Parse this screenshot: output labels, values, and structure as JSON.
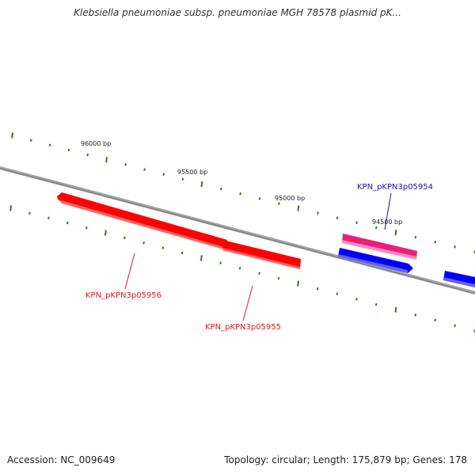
{
  "title": "Klebsiella pneumoniae subsp. pneumoniae MGH 78578 plasmid pK...",
  "accession": "Accession: NC_009649",
  "summary": "Topology: circular; Length: 175,879 bp; Genes: 178",
  "ruler": {
    "labels": [
      "96000 bp",
      "95500 bp",
      "95000 bp",
      "94500 bp"
    ],
    "positions_bp": [
      96000,
      95500,
      95000,
      94500
    ],
    "tick_color": "#2e7d1a"
  },
  "genes": [
    {
      "name": "KPN_pKPN3p05956",
      "strand": "+",
      "color": "#ff0000",
      "label_color": "#d02020"
    },
    {
      "name": "KPN_pKPN3p05955",
      "strand": "+",
      "color": "#ff0000",
      "label_color": "#d02020"
    },
    {
      "name": "KPN_pKPN3p05954",
      "strand": "-",
      "color": "#e8207a",
      "label_color": "#1a1aa0"
    },
    {
      "name": "",
      "strand": "-",
      "color": "#0000ff"
    },
    {
      "name": "",
      "strand": "-",
      "color": "#0000ff"
    }
  ],
  "colors": {
    "backbone": "#7a7a7a",
    "red": "#ff0000",
    "pink": "#e8207a",
    "blue": "#0000ff"
  }
}
